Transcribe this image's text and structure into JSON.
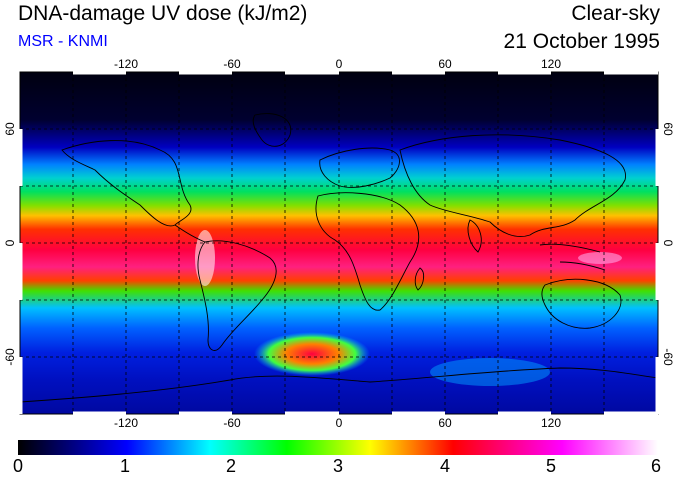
{
  "header": {
    "title": "DNA-damage UV dose (kJ/m2)",
    "source": "MSR - KNMI",
    "condition": "Clear-sky",
    "date": "21 October 1995"
  },
  "map": {
    "lon_ticks": [
      "-120",
      "-60",
      "0",
      "60",
      "120"
    ],
    "lat_ticks_left": [
      "60",
      "0",
      "-60"
    ],
    "lat_ticks_right": [
      "60",
      "0",
      "-60"
    ],
    "grid": "dashed 30° graticule",
    "colors": {
      "polar_night": "#000000",
      "low": "#0000ff",
      "mid": "#00ff00",
      "high": "#ff0000",
      "max": "#ffffff"
    }
  },
  "colorbar": {
    "ticks": [
      "0",
      "1",
      "2",
      "3",
      "4",
      "5",
      "6"
    ],
    "stops": [
      "#000000",
      "#0000ff",
      "#00ffff",
      "#00ff00",
      "#ffff00",
      "#ff0000",
      "#ff00ff",
      "#ffffff"
    ]
  }
}
